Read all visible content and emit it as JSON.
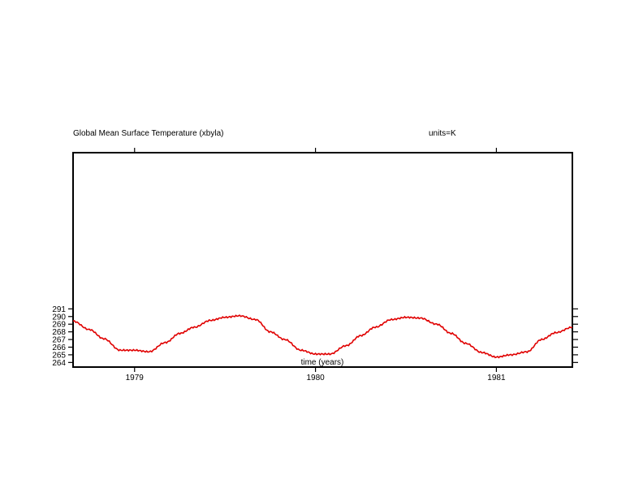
{
  "chart_data": {
    "type": "line",
    "title": "Global Mean Surface Temperature (xbyla)",
    "units_label": "units=K",
    "xlabel": "time (years)",
    "ylabel": "",
    "xlim": [
      1978.66,
      1981.42
    ],
    "ylim": [
      263.4,
      291.4
    ],
    "x_ticks": [
      1979,
      1980,
      1981
    ],
    "x_tick_labels": [
      "1979",
      "1980",
      "1981"
    ],
    "y_ticks": [
      264,
      265,
      266,
      267,
      268,
      269,
      290,
      291
    ],
    "y_tick_labels": [
      "264",
      "265",
      "266",
      "267",
      "268",
      "269",
      "290",
      "291"
    ],
    "grid": false,
    "legend": "none",
    "series": [
      {
        "color": "#e00000",
        "x": [
          1978.66,
          1978.75,
          1978.83,
          1978.92,
          1979.0,
          1979.08,
          1979.17,
          1979.25,
          1979.33,
          1979.42,
          1979.5,
          1979.58,
          1979.67,
          1979.75,
          1979.83,
          1979.92,
          1980.0,
          1980.08,
          1980.17,
          1980.25,
          1980.33,
          1980.42,
          1980.5,
          1980.58,
          1980.67,
          1980.75,
          1980.83,
          1980.92,
          1981.0,
          1981.08,
          1981.17,
          1981.25,
          1981.33,
          1981.42
        ],
        "y": [
          289.4,
          288.3,
          287.1,
          285.6,
          285.6,
          285.4,
          286.6,
          287.8,
          288.6,
          289.5,
          289.9,
          290.1,
          289.6,
          288.0,
          287.0,
          285.6,
          285.1,
          285.1,
          286.2,
          287.5,
          288.6,
          289.6,
          289.9,
          289.8,
          289.0,
          287.8,
          286.5,
          285.3,
          284.7,
          285.0,
          285.4,
          287.0,
          287.9,
          288.6
        ]
      }
    ]
  }
}
